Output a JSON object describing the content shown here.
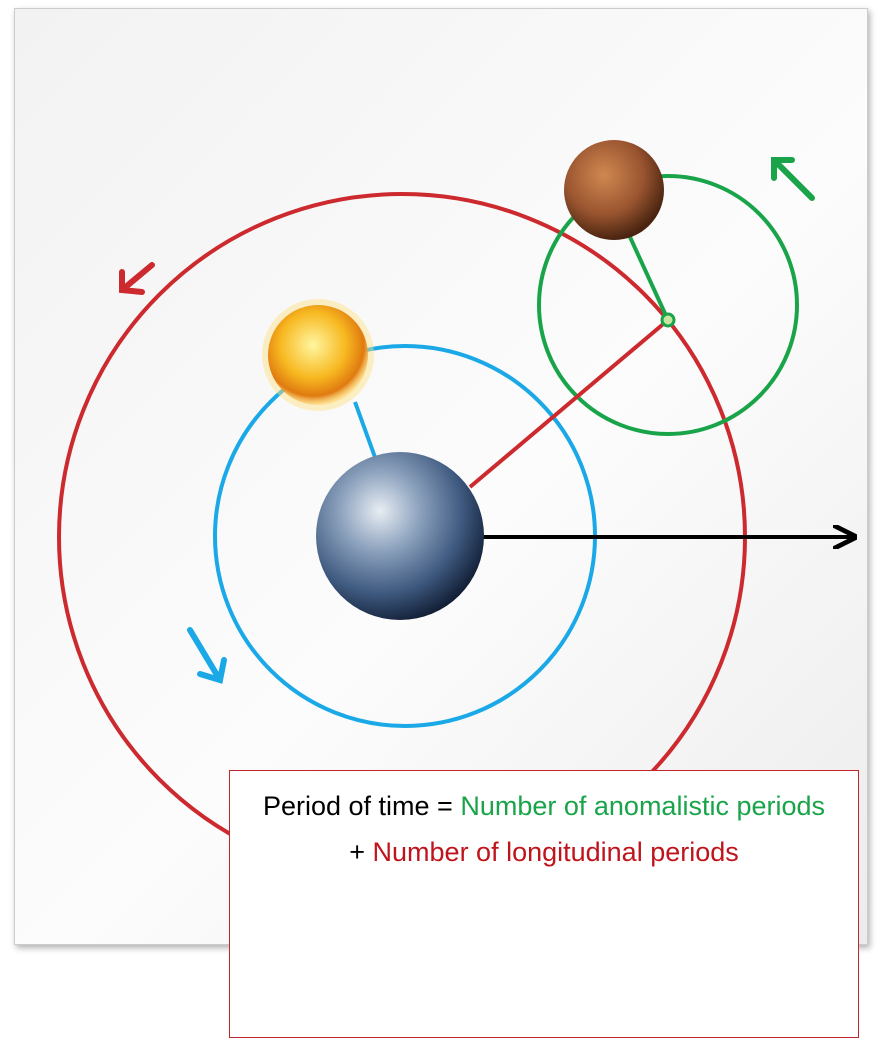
{
  "caption": {
    "line1": {
      "prefix": "Period of time = ",
      "highlight": "Number of anomalistic periods"
    },
    "line2": {
      "prefix": "+ ",
      "highlight": "Number of longitudinal periods"
    }
  }
}
